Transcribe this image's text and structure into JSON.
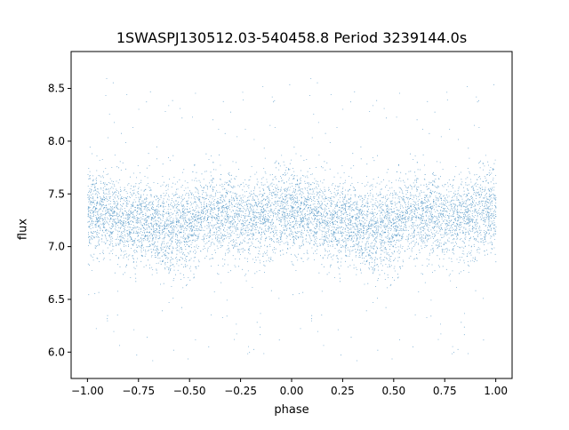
{
  "chart_data": {
    "type": "scatter",
    "title": "1SWASPJ130512.03-540458.8 Period 3239144.0s",
    "xlabel": "phase",
    "ylabel": "flux",
    "xlim": [
      -1.08,
      1.08
    ],
    "ylim": [
      5.75,
      8.85
    ],
    "x_ticks": [
      -1.0,
      -0.75,
      -0.5,
      -0.25,
      0.0,
      0.25,
      0.5,
      0.75,
      1.0
    ],
    "x_tick_labels": [
      "−1.00",
      "−0.75",
      "−0.50",
      "−0.25",
      "0.00",
      "0.25",
      "0.50",
      "0.75",
      "1.00"
    ],
    "y_ticks": [
      6.0,
      6.5,
      7.0,
      7.5,
      8.0,
      8.5
    ],
    "y_tick_labels": [
      "6.0",
      "6.5",
      "7.0",
      "7.5",
      "8.0",
      "8.5"
    ],
    "grid": false,
    "point_color": "#1f77b4",
    "series": [
      {
        "x_range": [
          -1.0,
          1.0
        ],
        "mirrored_at_phase": 1.0,
        "flux_profile": {
          "phase": [
            0.0,
            0.1,
            0.2,
            0.3,
            0.4,
            0.5,
            0.6,
            0.7,
            0.8,
            0.9,
            1.0
          ],
          "median_flux": [
            7.35,
            7.3,
            7.25,
            7.2,
            7.15,
            7.2,
            7.3,
            7.3,
            7.25,
            7.3,
            7.35
          ]
        },
        "typical_spread": 0.2,
        "flux_extent": [
          5.9,
          8.7
        ],
        "estimated_point_count": 12000
      }
    ]
  }
}
